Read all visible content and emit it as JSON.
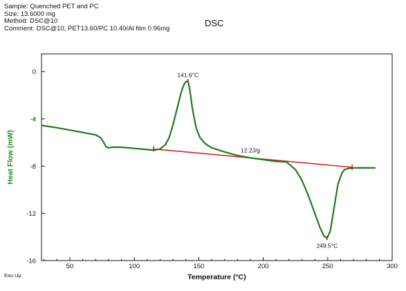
{
  "header": {
    "sample": "Sample: Quenched PET and PC",
    "size": "Size:  13.6000 mg",
    "method": "Method: DSC@10",
    "comment": "Comment: DSC@10, PET13.60/PC 10.40/Al film 0.96mg"
  },
  "footer": {
    "exo_up": "Exo Up"
  },
  "colors": {
    "curve": "#1e7a1e",
    "baseline": "#e0201c",
    "axis": "#111111",
    "ylabel": "#1a8a1a"
  },
  "chart_data": {
    "type": "line",
    "title": "DSC",
    "xlabel": "Temperature (°C)",
    "ylabel": "Heat Flow (mW)",
    "xlim": [
      28,
      300
    ],
    "ylim": [
      -16,
      1.5
    ],
    "x_ticks": [
      50,
      100,
      150,
      200,
      250,
      300
    ],
    "x_tick_labels": [
      "50",
      "100",
      "150",
      "200",
      "250",
      "300"
    ],
    "y_ticks": [
      0,
      -4,
      -8,
      -12,
      -16
    ],
    "y_tick_labels": [
      "0",
      "-4",
      "-8",
      "-12",
      "-16"
    ],
    "grid": false,
    "series": [
      {
        "x": [
          28,
          40,
          50,
          60,
          70,
          74,
          76,
          78,
          80,
          83,
          90,
          100,
          110,
          115,
          120,
          124,
          127,
          130,
          133,
          136,
          138,
          140,
          141.6,
          143,
          145,
          148,
          151,
          155,
          160,
          170,
          180,
          190,
          200,
          210,
          218,
          225,
          230,
          235,
          240,
          244,
          247,
          249.5,
          252,
          255,
          258,
          261,
          263,
          266,
          270,
          280,
          287
        ],
        "y": [
          -4.55,
          -4.75,
          -4.95,
          -5.15,
          -5.35,
          -5.6,
          -5.95,
          -6.35,
          -6.45,
          -6.4,
          -6.4,
          -6.5,
          -6.6,
          -6.65,
          -6.55,
          -6.2,
          -5.6,
          -4.5,
          -3.2,
          -1.9,
          -1.2,
          -0.85,
          -0.8,
          -1.5,
          -3.1,
          -4.8,
          -5.6,
          -6.1,
          -6.45,
          -6.8,
          -7.1,
          -7.3,
          -7.45,
          -7.6,
          -7.65,
          -8.3,
          -9.2,
          -10.5,
          -12.0,
          -13.2,
          -13.9,
          -14.1,
          -13.5,
          -11.5,
          -9.5,
          -8.6,
          -8.3,
          -8.2,
          -8.15,
          -8.15,
          -8.15
        ]
      }
    ],
    "baseline": {
      "x": [
        115,
        269
      ],
      "y": [
        -6.55,
        -8.1
      ]
    },
    "annotations": [
      {
        "text": "141.6°C",
        "x": 141.6,
        "y": -0.8
      },
      {
        "text": "12.2J/g",
        "x": 190,
        "y": -7.3
      },
      {
        "text": "249.5°C",
        "x": 249.5,
        "y": -14.1
      }
    ]
  }
}
